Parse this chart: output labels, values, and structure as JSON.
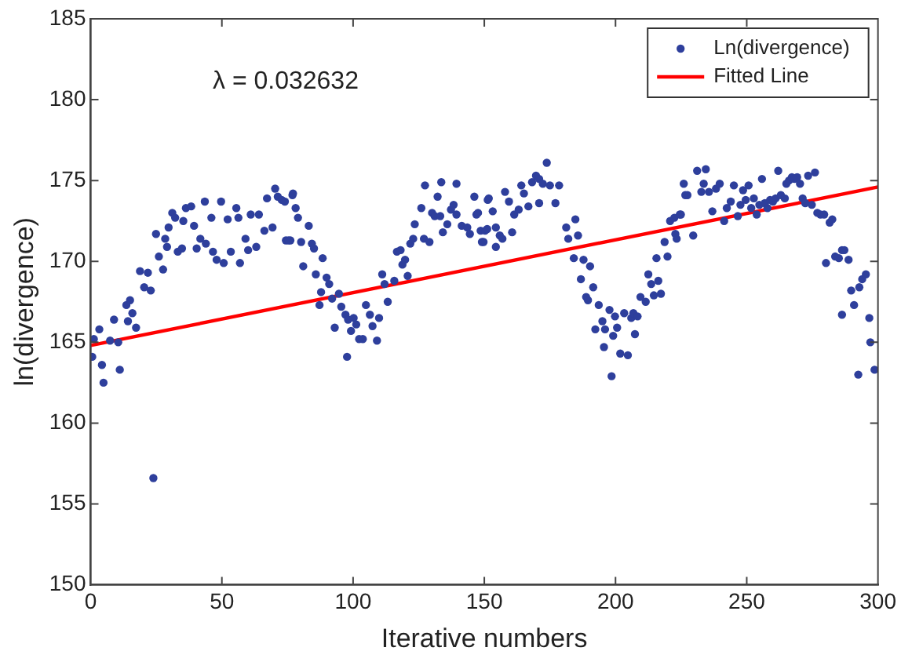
{
  "chart_data": {
    "type": "scatter",
    "xlabel": "Iterative numbers",
    "ylabel": "ln(divergence)",
    "xlim": [
      0,
      300
    ],
    "xticks": [
      0,
      50,
      100,
      150,
      200,
      250,
      300
    ],
    "ylim": [
      150,
      185
    ],
    "yticks": [
      150,
      155,
      160,
      165,
      170,
      175,
      180,
      185
    ],
    "grid": false,
    "legend": "top right",
    "marker": "circle",
    "annotations": [
      "λ = 0.032632"
    ],
    "series": [
      {
        "name": "Ln(divergence)",
        "color": "#2e3f9c",
        "x": [
          0.6,
          1.2,
          3.3,
          4.3,
          4.9,
          7.4,
          8.9,
          10.5,
          11.1,
          13.6,
          15.0,
          15.9,
          14.2,
          17.3,
          18.8,
          20.4,
          21.8,
          22.9,
          23.9,
          24.9,
          26.0,
          27.6,
          28.4,
          29.1,
          29.7,
          31.1,
          32.2,
          33.2,
          34.8,
          35.3,
          36.3,
          38.3,
          39.4,
          40.4,
          41.8,
          43.5,
          43.9,
          46.0,
          46.6,
          48.0,
          49.7,
          50.7,
          52.2,
          53.4,
          55.5,
          56.3,
          56.9,
          59.0,
          60.0,
          61.0,
          63.1,
          64.1,
          66.2,
          67.2,
          69.3,
          70.3,
          71.3,
          72.8,
          74.4,
          76.1,
          77.1,
          78.1,
          74.0,
          76.9,
          79.0,
          75.4,
          80.2,
          83.1,
          84.3,
          85.1,
          81.0,
          85.8,
          88.4,
          89.9,
          90.9,
          87.8,
          87.2,
          92.0,
          94.6,
          95.5,
          97.1,
          98.1,
          93.0,
          100.2,
          101.2,
          99.2,
          102.3,
          103.7,
          97.7,
          104.9,
          106.4,
          107.4,
          109.1,
          109.9,
          111.1,
          112.0,
          113.2,
          115.7,
          116.7,
          118.1,
          118.8,
          119.8,
          120.8,
          121.8,
          122.9,
          123.5,
          126.0,
          127.0,
          127.4,
          129.1,
          130.1,
          131.1,
          132.2,
          133.2,
          133.6,
          134.2,
          135.9,
          137.3,
          138.3,
          139.4,
          139.4,
          141.4,
          143.5,
          144.5,
          146.2,
          147.0,
          148.6,
          149.1,
          150.3,
          151.3,
          147.6,
          149.7,
          151.1,
          151.7,
          153.2,
          154.4,
          154.4,
          155.9,
          156.9,
          157.9,
          159.4,
          160.6,
          161.4,
          163.1,
          164.1,
          165.1,
          166.8,
          168.2,
          169.7,
          170.9,
          170.9,
          172.3,
          173.8,
          175.0,
          177.1,
          178.5,
          181.2,
          182.0,
          184.7,
          184.1,
          185.7,
          186.8,
          187.8,
          190.3,
          188.8,
          189.5,
          191.5,
          193.6,
          195.0,
          192.3,
          196.0,
          197.7,
          199.8,
          200.6,
          199.1,
          195.6,
          198.5,
          201.8,
          203.3,
          204.7,
          206.0,
          206.8,
          207.4,
          208.4,
          209.5,
          211.5,
          212.5,
          213.6,
          214.6,
          216.3,
          217.3,
          215.6,
          218.7,
          219.8,
          220.8,
          222.4,
          223.3,
          224.5,
          226.0,
          226.6,
          222.8,
          224.9,
          227.4,
          229.6,
          231.1,
          232.7,
          233.6,
          234.4,
          235.6,
          236.9,
          238.3,
          239.7,
          241.4,
          242.4,
          243.9,
          245.1,
          246.6,
          247.6,
          248.6,
          249.6,
          250.7,
          251.7,
          252.7,
          253.8,
          254.8,
          255.8,
          256.9,
          257.9,
          258.9,
          260.0,
          261.0,
          262.0,
          263.0,
          264.5,
          265.1,
          266.1,
          267.2,
          268.2,
          269.2,
          270.3,
          271.3,
          272.3,
          273.4,
          274.8,
          276.0,
          276.9,
          278.1,
          279.5,
          281.6,
          282.6,
          280.2,
          283.7,
          285.1,
          286.3,
          287.2,
          288.8,
          286.3,
          289.8,
          290.9,
          292.9,
          294.0,
          295.4,
          292.5,
          296.7,
          297.1,
          298.7
        ],
        "values": [
          164.1,
          165.2,
          165.8,
          163.6,
          162.5,
          165.1,
          166.4,
          165.0,
          163.3,
          167.3,
          167.6,
          166.8,
          166.3,
          165.9,
          169.4,
          168.4,
          169.3,
          168.2,
          156.6,
          171.7,
          170.3,
          169.5,
          171.4,
          170.9,
          172.1,
          173.0,
          172.7,
          170.6,
          170.8,
          172.5,
          173.3,
          173.4,
          172.2,
          170.8,
          171.4,
          173.7,
          171.1,
          172.7,
          170.6,
          170.1,
          173.7,
          169.9,
          172.6,
          170.6,
          173.3,
          172.7,
          169.9,
          171.4,
          170.7,
          172.9,
          170.9,
          172.9,
          171.9,
          173.9,
          172.1,
          174.5,
          174.0,
          173.8,
          171.3,
          171.3,
          174.2,
          173.3,
          173.7,
          174.1,
          172.7,
          171.3,
          171.2,
          172.2,
          171.1,
          170.8,
          169.7,
          169.2,
          170.2,
          169.0,
          168.6,
          168.1,
          167.3,
          167.7,
          168.0,
          167.2,
          166.7,
          166.4,
          165.9,
          166.5,
          166.1,
          165.7,
          165.2,
          165.2,
          164.1,
          167.3,
          166.7,
          166.0,
          165.1,
          166.5,
          169.2,
          168.6,
          167.5,
          168.8,
          170.6,
          170.7,
          169.8,
          170.1,
          169.1,
          171.1,
          171.4,
          172.3,
          173.3,
          171.4,
          174.7,
          171.2,
          173.0,
          172.8,
          174.0,
          172.8,
          174.9,
          171.8,
          172.3,
          173.2,
          173.5,
          174.8,
          172.9,
          172.2,
          172.1,
          171.7,
          174.0,
          172.9,
          171.9,
          171.2,
          171.9,
          173.8,
          173.0,
          171.2,
          172.0,
          173.9,
          173.1,
          170.9,
          172.1,
          171.6,
          171.4,
          174.3,
          173.7,
          171.8,
          172.9,
          173.2,
          174.7,
          174.2,
          173.4,
          174.9,
          175.3,
          175.1,
          173.6,
          174.8,
          176.1,
          174.7,
          173.6,
          174.7,
          172.1,
          171.4,
          172.6,
          170.2,
          171.6,
          168.9,
          170.1,
          169.7,
          167.8,
          167.6,
          168.4,
          167.3,
          166.3,
          165.8,
          165.8,
          167.0,
          166.6,
          165.9,
          165.4,
          164.7,
          162.9,
          164.3,
          166.8,
          164.2,
          166.5,
          166.8,
          165.5,
          166.6,
          167.8,
          167.5,
          169.2,
          168.6,
          167.9,
          168.8,
          168.0,
          170.2,
          171.2,
          170.3,
          172.5,
          172.7,
          171.4,
          172.9,
          174.8,
          174.1,
          171.7,
          172.9,
          174.1,
          171.6,
          175.6,
          174.3,
          174.8,
          175.7,
          174.3,
          173.1,
          174.5,
          174.8,
          172.5,
          173.3,
          173.7,
          174.7,
          172.8,
          173.5,
          174.4,
          173.8,
          174.7,
          173.3,
          173.9,
          172.9,
          173.5,
          175.1,
          173.6,
          173.3,
          173.8,
          173.7,
          173.9,
          175.6,
          174.1,
          173.9,
          174.8,
          175.0,
          175.2,
          175.1,
          175.2,
          174.8,
          173.9,
          173.6,
          175.3,
          173.5,
          175.5,
          173.0,
          172.9,
          172.9,
          172.4,
          172.6,
          169.9,
          170.3,
          170.2,
          170.7,
          170.7,
          170.1,
          166.7,
          168.2,
          167.3,
          168.4,
          168.9,
          169.2,
          163.0,
          166.5,
          165.0,
          163.3
        ]
      },
      {
        "name": "Fitted Line",
        "type": "line",
        "color": "#ff0000",
        "marker": "none",
        "line_style": "solid",
        "x": [
          0,
          300
        ],
        "values": [
          164.8,
          174.6
        ]
      }
    ]
  }
}
